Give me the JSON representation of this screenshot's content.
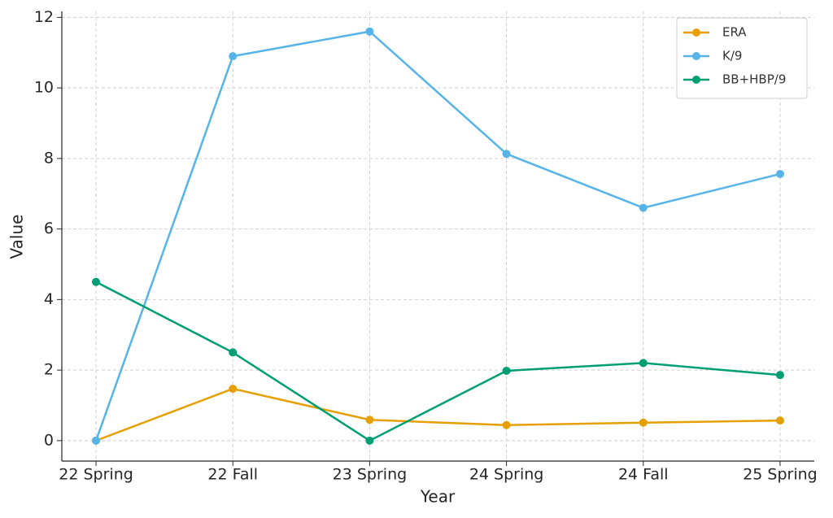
{
  "chart_data": {
    "type": "line",
    "x_label": "Year",
    "y_label": "Value",
    "categories": [
      "22 Spring",
      "22 Fall",
      "23 Spring",
      "24 Spring",
      "24 Fall",
      "25 Spring"
    ],
    "series": [
      {
        "name": "ERA",
        "color": "#E69F00",
        "values": [
          0,
          1.47,
          0.59,
          0.44,
          0.51,
          0.57
        ]
      },
      {
        "name": "K/9",
        "color": "#56B4E9",
        "values": [
          0,
          10.9,
          11.6,
          8.13,
          6.6,
          7.56
        ]
      },
      {
        "name": "BB+HBP/9",
        "color": "#009E73",
        "values": [
          4.5,
          2.5,
          0,
          1.98,
          2.2,
          1.86
        ]
      }
    ],
    "ylim": [
      -0.58,
      12.17
    ],
    "yticks": [
      0,
      2,
      4,
      6,
      8,
      10,
      12
    ],
    "grid": true,
    "legend": "upper right"
  }
}
